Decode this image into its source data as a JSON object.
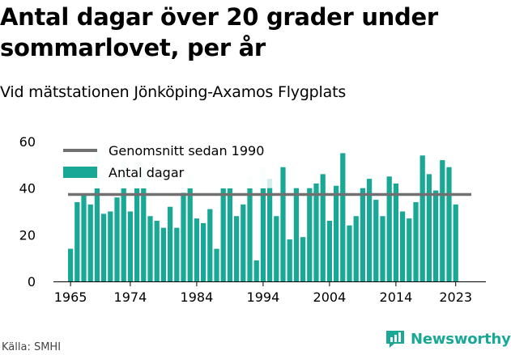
{
  "header": {
    "title": "Antal dagar över 20 grader under sommarlovet, per år",
    "subtitle": "Vid mätstationen Jönköping-Axamos Flygplats"
  },
  "footer": {
    "source": "Källa: SMHI",
    "brand": "Newsworthy"
  },
  "colors": {
    "bar": "#1aa896",
    "bar_light": "#d3eded",
    "average_line": "#707070",
    "axis": "#000000",
    "brand": "#1aa896"
  },
  "chart_data": {
    "type": "bar",
    "title": "Antal dagar över 20 grader under sommarlovet, per år",
    "subtitle": "Vid mätstationen Jönköping-Axamos Flygplats",
    "xlabel": "",
    "ylabel": "",
    "ylim": [
      0,
      60
    ],
    "yticks": [
      "0",
      "20",
      "40",
      "60"
    ],
    "xticks": [
      "1965",
      "1974",
      "1984",
      "1994",
      "2004",
      "2014",
      "2023"
    ],
    "grid": false,
    "legend_position": "top-left",
    "x": [
      1965,
      1966,
      1967,
      1968,
      1969,
      1970,
      1971,
      1972,
      1973,
      1974,
      1975,
      1976,
      1977,
      1978,
      1979,
      1980,
      1981,
      1982,
      1983,
      1984,
      1985,
      1986,
      1987,
      1988,
      1989,
      1990,
      1991,
      1992,
      1993,
      1994,
      1995,
      1996,
      1997,
      1998,
      1999,
      2000,
      2001,
      2002,
      2003,
      2004,
      2005,
      2006,
      2007,
      2008,
      2009,
      2010,
      2011,
      2012,
      2013,
      2014,
      2015,
      2016,
      2017,
      2018,
      2019,
      2020,
      2021,
      2022,
      2023
    ],
    "series": [
      {
        "name": "Antal dagar",
        "color": "#1aa896",
        "values": [
          14,
          34,
          37,
          33,
          40,
          29,
          30,
          36,
          40,
          30,
          40,
          40,
          28,
          26,
          23,
          32,
          23,
          38,
          40,
          27,
          25,
          31,
          14,
          40,
          40,
          28,
          33,
          40,
          9,
          40,
          40,
          28,
          49,
          18,
          40,
          19,
          40,
          42,
          46,
          26,
          41,
          55,
          24,
          28,
          40,
          44,
          35,
          28,
          45,
          42,
          30,
          27,
          34,
          54,
          46,
          39,
          52,
          49,
          33
        ]
      },
      {
        "name": "",
        "color": "#d3eded",
        "values": [
          14,
          34,
          37,
          33,
          57,
          29,
          30,
          36,
          52,
          30,
          52,
          50,
          28,
          26,
          23,
          32,
          23,
          38,
          46,
          27,
          25,
          31,
          14,
          40,
          43,
          28,
          33,
          45,
          9,
          49,
          44,
          28,
          49,
          18,
          40,
          19,
          40,
          42,
          46,
          26,
          41,
          55,
          24,
          28,
          40,
          44,
          35,
          28,
          45,
          42,
          30,
          27,
          34,
          54,
          46,
          39,
          52,
          49,
          33
        ]
      },
      {
        "name": "Genomsnitt sedan 1990",
        "type": "line",
        "color": "#707070",
        "value": 37.3
      }
    ]
  }
}
